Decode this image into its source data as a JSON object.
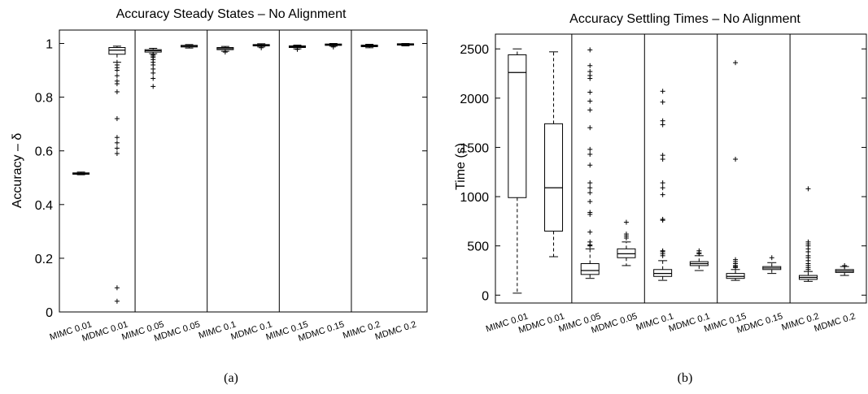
{
  "chart_data": [
    {
      "type": "box",
      "title": "Accuracy Steady States – No Alignment",
      "xlabel": "",
      "ylabel": "Accuracy – δ",
      "ylim": [
        0,
        1.05
      ],
      "yticks": [
        0,
        0.2,
        0.4,
        0.6,
        0.8,
        1
      ],
      "ytick_labels": [
        "0",
        "0.2",
        "0.4",
        "0.6",
        "0.8",
        "1"
      ],
      "grid": false,
      "caption": "(a)",
      "categories": [
        "MIMC 0.01",
        "MDMC 0.01",
        "MIMC 0.05",
        "MDMC 0.05",
        "MIMC 0.1",
        "MDMC 0.1",
        "MIMC 0.15",
        "MDMC 0.15",
        "MIMC 0.2",
        "MDMC 0.2"
      ],
      "separators_after": [
        2,
        4,
        6,
        8
      ],
      "boxes": [
        {
          "q1": 0.513,
          "median": 0.516,
          "q3": 0.518,
          "whislo": 0.511,
          "whishi": 0.521,
          "outliers": []
        },
        {
          "q1": 0.96,
          "median": 0.975,
          "q3": 0.985,
          "whislo": 0.93,
          "whishi": 0.99,
          "outliers": [
            0.92,
            0.91,
            0.9,
            0.88,
            0.86,
            0.85,
            0.82,
            0.72,
            0.65,
            0.63,
            0.61,
            0.59,
            0.09,
            0.04
          ]
        },
        {
          "q1": 0.968,
          "median": 0.973,
          "q3": 0.977,
          "whislo": 0.962,
          "whishi": 0.982,
          "outliers": [
            0.958,
            0.953,
            0.948,
            0.94,
            0.93,
            0.92,
            0.905,
            0.89,
            0.87,
            0.84
          ]
        },
        {
          "q1": 0.987,
          "median": 0.99,
          "q3": 0.993,
          "whislo": 0.983,
          "whishi": 0.996,
          "outliers": []
        },
        {
          "q1": 0.977,
          "median": 0.981,
          "q3": 0.985,
          "whislo": 0.971,
          "whishi": 0.989,
          "outliers": [
            0.968
          ]
        },
        {
          "q1": 0.991,
          "median": 0.994,
          "q3": 0.996,
          "whislo": 0.987,
          "whishi": 0.999,
          "outliers": [
            0.984
          ]
        },
        {
          "q1": 0.985,
          "median": 0.988,
          "q3": 0.991,
          "whislo": 0.98,
          "whishi": 0.994,
          "outliers": [
            0.978
          ]
        },
        {
          "q1": 0.993,
          "median": 0.996,
          "q3": 0.998,
          "whislo": 0.99,
          "whishi": 1.0,
          "outliers": [
            0.987
          ]
        },
        {
          "q1": 0.988,
          "median": 0.991,
          "q3": 0.994,
          "whislo": 0.984,
          "whishi": 0.997,
          "outliers": []
        },
        {
          "q1": 0.994,
          "median": 0.997,
          "q3": 0.999,
          "whislo": 0.991,
          "whishi": 1.0,
          "outliers": []
        }
      ]
    },
    {
      "type": "box",
      "title": "Accuracy Settling Times – No Alignment",
      "xlabel": "",
      "ylabel": "Time (s)",
      "ylim": [
        -80,
        2650
      ],
      "yticks": [
        0,
        500,
        1000,
        1500,
        2000,
        2500
      ],
      "ytick_labels": [
        "0",
        "500",
        "1000",
        "1500",
        "2000",
        "2500"
      ],
      "grid": false,
      "caption": "(b)",
      "categories": [
        "MIMC 0.01",
        "MDMC 0.01",
        "MIMC 0.05",
        "MDMC 0.05",
        "MIMC 0.1",
        "MDMC 0.1",
        "MIMC 0.15",
        "MDMC 0.15",
        "MIMC 0.2",
        "MDMC 0.2"
      ],
      "separators_after": [
        2,
        4,
        6,
        8
      ],
      "boxes": [
        {
          "q1": 990,
          "median": 2260,
          "q3": 2440,
          "whislo": 20,
          "whishi": 2500,
          "outliers": []
        },
        {
          "q1": 650,
          "median": 1090,
          "q3": 1740,
          "whislo": 390,
          "whishi": 2470,
          "outliers": []
        },
        {
          "q1": 210,
          "median": 250,
          "q3": 320,
          "whislo": 170,
          "whishi": 470,
          "outliers": [
            2490,
            2330,
            2270,
            2230,
            2200,
            2060,
            1970,
            1880,
            1700,
            1480,
            1430,
            1320,
            1140,
            1090,
            1040,
            950,
            840,
            820,
            640,
            540,
            510,
            500
          ]
        },
        {
          "q1": 380,
          "median": 420,
          "q3": 470,
          "whislo": 300,
          "whishi": 540,
          "outliers": [
            740,
            620,
            600,
            580
          ]
        },
        {
          "q1": 190,
          "median": 220,
          "q3": 260,
          "whislo": 150,
          "whishi": 350,
          "outliers": [
            2070,
            1960,
            1770,
            1730,
            1420,
            1380,
            1140,
            1090,
            1020,
            770,
            760,
            450,
            440,
            420,
            400
          ]
        },
        {
          "q1": 300,
          "median": 320,
          "q3": 340,
          "whislo": 250,
          "whishi": 400,
          "outliers": [
            450,
            430,
            420
          ]
        },
        {
          "q1": 170,
          "median": 190,
          "q3": 220,
          "whislo": 150,
          "whishi": 260,
          "outliers": [
            2360,
            1380,
            360,
            340,
            320,
            300,
            290,
            280
          ]
        },
        {
          "q1": 260,
          "median": 275,
          "q3": 290,
          "whislo": 220,
          "whishi": 330,
          "outliers": [
            380
          ]
        },
        {
          "q1": 160,
          "median": 180,
          "q3": 200,
          "whislo": 140,
          "whishi": 240,
          "outliers": [
            1080,
            540,
            520,
            500,
            470,
            440,
            400,
            380,
            350,
            320,
            300,
            280,
            260
          ]
        },
        {
          "q1": 230,
          "median": 245,
          "q3": 260,
          "whislo": 200,
          "whishi": 290,
          "outliers": [
            300
          ]
        }
      ]
    }
  ]
}
